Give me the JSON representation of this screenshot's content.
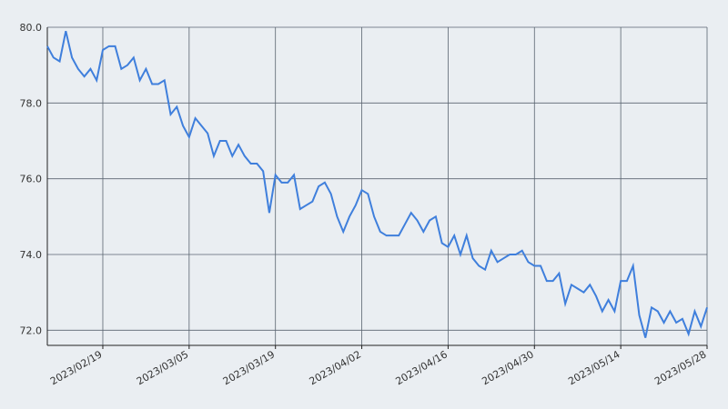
{
  "chart_data": {
    "type": "line",
    "x": [
      "2023-02-10",
      "2023-02-11",
      "2023-02-12",
      "2023-02-13",
      "2023-02-14",
      "2023-02-15",
      "2023-02-16",
      "2023-02-17",
      "2023-02-18",
      "2023-02-19",
      "2023-02-20",
      "2023-02-21",
      "2023-02-22",
      "2023-02-23",
      "2023-02-24",
      "2023-02-25",
      "2023-02-26",
      "2023-02-27",
      "2023-02-28",
      "2023-03-01",
      "2023-03-02",
      "2023-03-03",
      "2023-03-04",
      "2023-03-05",
      "2023-03-06",
      "2023-03-07",
      "2023-03-08",
      "2023-03-09",
      "2023-03-10",
      "2023-03-11",
      "2023-03-12",
      "2023-03-13",
      "2023-03-14",
      "2023-03-15",
      "2023-03-16",
      "2023-03-17",
      "2023-03-18",
      "2023-03-19",
      "2023-03-20",
      "2023-03-21",
      "2023-03-22",
      "2023-03-23",
      "2023-03-24",
      "2023-03-25",
      "2023-03-26",
      "2023-03-27",
      "2023-03-28",
      "2023-03-29",
      "2023-03-30",
      "2023-03-31",
      "2023-04-01",
      "2023-04-02",
      "2023-04-03",
      "2023-04-04",
      "2023-04-05",
      "2023-04-06",
      "2023-04-07",
      "2023-04-08",
      "2023-04-09",
      "2023-04-10",
      "2023-04-11",
      "2023-04-12",
      "2023-04-13",
      "2023-04-14",
      "2023-04-15",
      "2023-04-16",
      "2023-04-17",
      "2023-04-18",
      "2023-04-19",
      "2023-04-20",
      "2023-04-21",
      "2023-04-22",
      "2023-04-23",
      "2023-04-24",
      "2023-04-25",
      "2023-04-26",
      "2023-04-27",
      "2023-04-28",
      "2023-04-29",
      "2023-04-30",
      "2023-05-01",
      "2023-05-02",
      "2023-05-03",
      "2023-05-04",
      "2023-05-05",
      "2023-05-06",
      "2023-05-07",
      "2023-05-08",
      "2023-05-09",
      "2023-05-10",
      "2023-05-11",
      "2023-05-12",
      "2023-05-13",
      "2023-05-14",
      "2023-05-15",
      "2023-05-16",
      "2023-05-17",
      "2023-05-18",
      "2023-05-19",
      "2023-05-20",
      "2023-05-21",
      "2023-05-22",
      "2023-05-23",
      "2023-05-24",
      "2023-05-25",
      "2023-05-26",
      "2023-05-27",
      "2023-05-28"
    ],
    "series": [
      {
        "color": "#3f7fdc",
        "values": [
          79.5,
          79.2,
          79.1,
          79.9,
          79.2,
          78.9,
          78.7,
          78.9,
          78.6,
          79.4,
          79.5,
          79.5,
          78.9,
          79.0,
          79.2,
          78.6,
          78.9,
          78.5,
          78.5,
          78.6,
          77.7,
          77.9,
          77.4,
          77.1,
          77.6,
          77.4,
          77.2,
          76.6,
          77.0,
          77.0,
          76.6,
          76.9,
          76.6,
          76.4,
          76.4,
          76.2,
          75.1,
          76.1,
          75.9,
          75.9,
          76.1,
          75.2,
          75.3,
          75.4,
          75.8,
          75.9,
          75.6,
          75.0,
          74.6,
          75.0,
          75.3,
          75.7,
          75.6,
          75.0,
          74.6,
          74.5,
          74.5,
          74.5,
          74.8,
          75.1,
          74.9,
          74.6,
          74.9,
          75.0,
          74.3,
          74.2,
          74.5,
          74.0,
          74.5,
          73.9,
          73.7,
          73.6,
          74.1,
          73.8,
          73.9,
          74.0,
          74.0,
          74.1,
          73.8,
          73.7,
          73.7,
          73.3,
          73.3,
          73.5,
          72.7,
          73.2,
          73.1,
          73.0,
          73.2,
          72.9,
          72.5,
          72.8,
          72.5,
          73.3,
          73.3,
          73.7,
          72.4,
          71.8,
          72.6,
          72.5,
          72.2,
          72.5,
          72.2,
          72.3,
          71.9,
          72.5,
          72.1,
          72.6
        ]
      }
    ],
    "xlim": [
      "2023-02-10",
      "2023-05-28"
    ],
    "xticks": [
      {
        "value": "2023-02-19",
        "label": "2023/02/19"
      },
      {
        "value": "2023-03-05",
        "label": "2023/03/05"
      },
      {
        "value": "2023-03-19",
        "label": "2023/03/19"
      },
      {
        "value": "2023-04-02",
        "label": "2023/04/02"
      },
      {
        "value": "2023-04-16",
        "label": "2023/04/16"
      },
      {
        "value": "2023-04-30",
        "label": "2023/04/30"
      },
      {
        "value": "2023-05-14",
        "label": "2023/05/14"
      },
      {
        "value": "2023-05-28",
        "label": "2023/05/28"
      }
    ],
    "ylim": [
      71.6,
      80
    ],
    "yticks": [
      {
        "value": 72,
        "label": "72.0"
      },
      {
        "value": 74,
        "label": "74.0"
      },
      {
        "value": 76,
        "label": "76.0"
      },
      {
        "value": 78,
        "label": "78.0"
      },
      {
        "value": 80,
        "label": "80.0"
      }
    ],
    "grid": true
  }
}
